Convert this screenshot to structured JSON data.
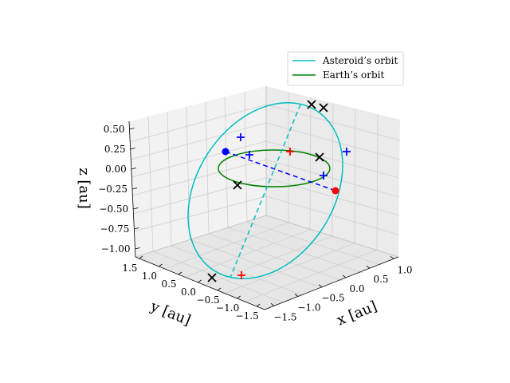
{
  "chart_data": {
    "type": "line",
    "projection": "3d",
    "title": "",
    "xlabel": "x [au]",
    "ylabel": "y [au]",
    "zlabel": "z [au]",
    "xlim": [
      -1.7,
      1.1
    ],
    "ylim": [
      -1.7,
      1.6
    ],
    "zlim": [
      -1.1,
      0.6
    ],
    "x_ticks": [
      "−1.5",
      "−1.0",
      "−0.5",
      "0.0",
      "0.5",
      "1.0"
    ],
    "y_ticks": [
      "−1.5",
      "−1.0",
      "−0.5",
      "0.0",
      "0.5",
      "1.0",
      "1.5"
    ],
    "z_ticks": [
      "−1.00",
      "−0.75",
      "−0.50",
      "−0.25",
      "0.00",
      "0.25",
      "0.50"
    ],
    "x_tick_values": [
      -1.5,
      -1.0,
      -0.5,
      0.0,
      0.5,
      1.0
    ],
    "y_tick_values": [
      -1.5,
      -1.0,
      -0.5,
      0.0,
      0.5,
      1.0,
      1.5
    ],
    "z_tick_values": [
      -1.0,
      -0.75,
      -0.5,
      -0.25,
      0.0,
      0.25,
      0.5
    ],
    "grid": true,
    "legend_position": "top-right",
    "series": [
      {
        "name": "Asteroid’s orbit",
        "color": "#00bfbf",
        "kind": "ellipse"
      },
      {
        "name": "Earth’s orbit",
        "color": "#008000",
        "kind": "circle"
      }
    ],
    "colors": {
      "asteroid": "#00bfbf",
      "earth": "#008000",
      "apsides_line": "#0000ff",
      "marker_blue": "#0000ff",
      "marker_red": "#ff0000",
      "marker_black": "#000000"
    },
    "markers": {
      "perihelion_point": "blue dot",
      "aphelion_point": "red dot",
      "plus_markers_blue": 5,
      "plus_markers_red": 2,
      "x_markers_black": 6
    }
  }
}
